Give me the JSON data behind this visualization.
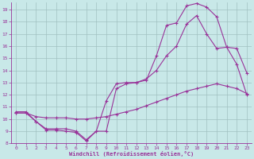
{
  "bg_color": "#c8e8e8",
  "grid_color": "#a0c0c0",
  "line_color": "#993399",
  "xlim": [
    -0.5,
    23.5
  ],
  "ylim": [
    8,
    19.6
  ],
  "yticks": [
    8,
    9,
    10,
    11,
    12,
    13,
    14,
    15,
    16,
    17,
    18,
    19
  ],
  "xticks": [
    0,
    1,
    2,
    3,
    4,
    5,
    6,
    7,
    8,
    9,
    10,
    11,
    12,
    13,
    14,
    15,
    16,
    17,
    18,
    19,
    20,
    21,
    22,
    23
  ],
  "xlabel": "Windchill (Refroidissement éolien,°C)",
  "curve1_x": [
    0,
    1,
    2,
    3,
    4,
    5,
    6,
    7,
    8,
    9,
    10,
    11,
    12,
    13,
    14,
    15,
    16,
    17,
    18,
    19,
    20,
    21,
    22,
    23
  ],
  "curve1_y": [
    10.6,
    10.6,
    9.8,
    9.2,
    9.2,
    9.2,
    9.0,
    8.3,
    9.0,
    11.5,
    12.9,
    13.0,
    13.0,
    13.2,
    15.2,
    17.7,
    17.9,
    19.3,
    19.5,
    19.2,
    18.4,
    15.9,
    15.8,
    13.8
  ],
  "curve2_x": [
    0,
    1,
    2,
    3,
    4,
    5,
    6,
    7,
    8,
    9,
    10,
    11,
    12,
    13,
    14,
    15,
    16,
    17,
    18,
    19,
    20,
    21,
    22,
    23
  ],
  "curve2_y": [
    10.5,
    10.5,
    9.8,
    9.1,
    9.1,
    9.0,
    8.9,
    8.2,
    9.0,
    9.0,
    12.5,
    12.9,
    13.0,
    13.3,
    14.0,
    15.2,
    16.0,
    17.8,
    18.5,
    17.0,
    15.8,
    15.9,
    14.5,
    12.0
  ],
  "curve3_x": [
    0,
    1,
    2,
    3,
    4,
    5,
    6,
    7,
    8,
    9,
    10,
    11,
    12,
    13,
    14,
    15,
    16,
    17,
    18,
    19,
    20,
    21,
    22,
    23
  ],
  "curve3_y": [
    10.5,
    10.5,
    10.2,
    10.1,
    10.1,
    10.1,
    10.0,
    10.0,
    10.1,
    10.2,
    10.4,
    10.6,
    10.8,
    11.1,
    11.4,
    11.7,
    12.0,
    12.3,
    12.5,
    12.7,
    12.9,
    12.7,
    12.5,
    12.1
  ]
}
